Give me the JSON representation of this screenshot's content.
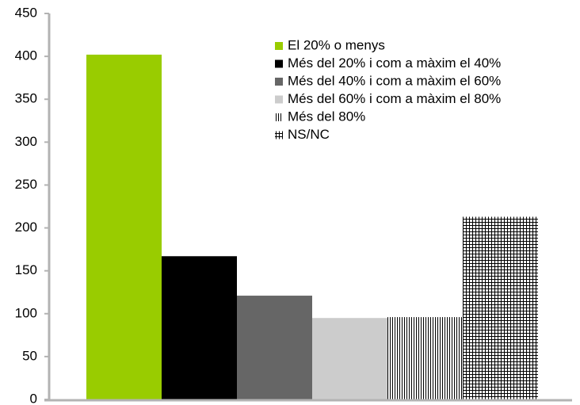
{
  "chart_data": {
    "type": "bar",
    "categories": [
      null
    ],
    "series": [
      {
        "name": "El 20% o menys",
        "color": "#99cc00",
        "values": [
          402
        ]
      },
      {
        "name": "Més del 20% i com a màxim el 40%",
        "color": "#000000",
        "values": [
          167
        ]
      },
      {
        "name": "Més del 40% i com a màxim el 60%",
        "color": "#666666",
        "values": [
          121
        ]
      },
      {
        "name": "Més del 60% i com a màxim el 80%",
        "color": "#cccccc",
        "values": [
          95
        ]
      },
      {
        "name": "Més del 80%",
        "color": "#000000",
        "pattern": "vertical",
        "values": [
          96
        ]
      },
      {
        "name": "NS/NC",
        "color": "#000000",
        "pattern": "crosshatch",
        "values": [
          213
        ]
      }
    ],
    "ylim": [
      0,
      450
    ],
    "yticks": [
      0,
      50,
      100,
      150,
      200,
      250,
      300,
      350,
      400,
      450
    ],
    "legend": "top-right"
  }
}
